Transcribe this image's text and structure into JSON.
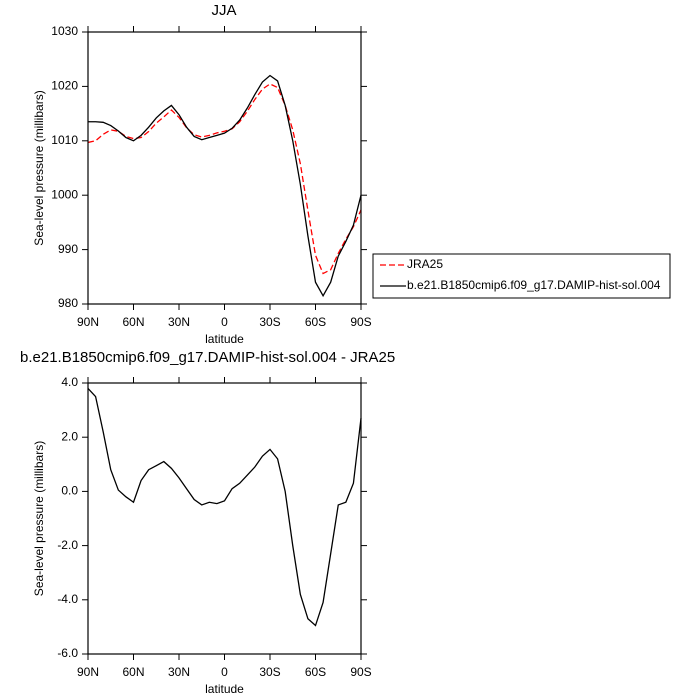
{
  "chart_data": [
    {
      "type": "line",
      "title": "JJA",
      "x_label": "latitude",
      "y_label": "Sea-level pressure (millibars)",
      "x": [
        90,
        85,
        80,
        75,
        70,
        65,
        60,
        55,
        50,
        45,
        40,
        35,
        30,
        25,
        20,
        15,
        10,
        5,
        0,
        -5,
        -10,
        -15,
        -20,
        -25,
        -30,
        -35,
        -40,
        -45,
        -50,
        -55,
        -60,
        -65,
        -70,
        -75,
        -80,
        -85,
        -90
      ],
      "series": [
        {
          "name": "JRA25",
          "color": "#ff0000",
          "dash": true,
          "values": [
            1009.7,
            1010.0,
            1011.2,
            1012.0,
            1011.75,
            1010.8,
            1010.4,
            1010.6,
            1011.7,
            1013.25,
            1014.4,
            1015.65,
            1014.3,
            1012.4,
            1011.1,
            1010.7,
            1011.0,
            1011.45,
            1011.75,
            1012.2,
            1013.5,
            1015.4,
            1017.6,
            1019.5,
            1020.45,
            1019.8,
            1016.5,
            1012.0,
            1005.8,
            997.2,
            988.95,
            985.6,
            986.3,
            989.3,
            991.9,
            994.2,
            997.3
          ]
        },
        {
          "name": "b.e21.B1850cmip6.f09_g17.DAMIP-hist-sol.004",
          "color": "#000000",
          "dash": false,
          "values": [
            1013.5,
            1013.5,
            1013.4,
            1012.8,
            1011.8,
            1010.6,
            1010.0,
            1011.0,
            1012.5,
            1014.2,
            1015.5,
            1016.5,
            1014.8,
            1012.5,
            1010.8,
            1010.2,
            1010.6,
            1011.0,
            1011.4,
            1012.3,
            1013.8,
            1016.0,
            1018.5,
            1020.8,
            1022.0,
            1021.0,
            1016.5,
            1010.0,
            1002.0,
            992.5,
            984.0,
            981.5,
            984.0,
            988.8,
            991.5,
            994.5,
            1000.0
          ]
        }
      ],
      "xlim": [
        90,
        -90
      ],
      "xticks": [
        {
          "value": 90,
          "label": "90N"
        },
        {
          "value": 60,
          "label": "60N"
        },
        {
          "value": 30,
          "label": "30N"
        },
        0,
        {
          "value": -30,
          "label": "30S"
        },
        {
          "value": -60,
          "label": "60S"
        },
        {
          "value": -90,
          "label": "90S"
        }
      ],
      "ylim": [
        980,
        1030
      ],
      "yticks": [
        980,
        990,
        1000,
        1010,
        1020,
        1030
      ],
      "legend": "right"
    },
    {
      "type": "line",
      "title": "b.e21.B1850cmip6.f09_g17.DAMIP-hist-sol.004 - JRA25",
      "x_label": "latitude",
      "y_label": "Sea-level pressure (millibars)",
      "x": [
        90,
        85,
        80,
        75,
        70,
        65,
        60,
        55,
        50,
        45,
        40,
        35,
        30,
        25,
        20,
        15,
        10,
        5,
        0,
        -5,
        -10,
        -15,
        -20,
        -25,
        -30,
        -35,
        -40,
        -45,
        -50,
        -55,
        -60,
        -65,
        -70,
        -75,
        -80,
        -85,
        -90
      ],
      "series": [
        {
          "color": "#000000",
          "dash": false,
          "values": [
            3.8,
            3.5,
            2.2,
            0.8,
            0.05,
            -0.2,
            -0.4,
            0.4,
            0.8,
            0.95,
            1.1,
            0.85,
            0.5,
            0.1,
            -0.3,
            -0.5,
            -0.4,
            -0.45,
            -0.35,
            0.1,
            0.3,
            0.6,
            0.9,
            1.3,
            1.55,
            1.2,
            0,
            -2,
            -3.8,
            -4.7,
            -4.95,
            -4.1,
            -2.3,
            -0.5,
            -0.4,
            0.3,
            2.7
          ]
        }
      ],
      "xlim": [
        90,
        -90
      ],
      "xticks": [
        {
          "value": 90,
          "label": "90N"
        },
        {
          "value": 60,
          "label": "60N"
        },
        {
          "value": 30,
          "label": "30N"
        },
        0,
        {
          "value": -30,
          "label": "30S"
        },
        {
          "value": -60,
          "label": "60S"
        },
        {
          "value": -90,
          "label": "90S"
        }
      ],
      "ylim": [
        -6,
        4
      ],
      "yticks": [
        {
          "value": -6,
          "label": "-6.0"
        },
        {
          "value": -4,
          "label": "-4.0"
        },
        {
          "value": -2,
          "label": "-2.0"
        },
        {
          "value": 0,
          "label": "0.0"
        },
        {
          "value": 2,
          "label": "2.0"
        },
        {
          "value": 4,
          "label": "4.0"
        }
      ]
    }
  ]
}
